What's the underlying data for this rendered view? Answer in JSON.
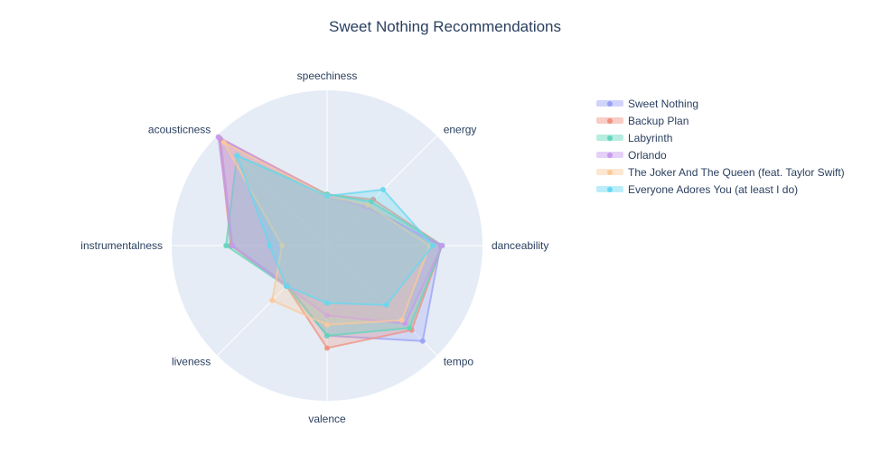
{
  "chart_data": {
    "type": "radar",
    "title": "Sweet Nothing Recommendations",
    "axes": [
      "speechiness",
      "energy",
      "danceability",
      "tempo",
      "valence",
      "liveness",
      "instrumentalness",
      "acousticness"
    ],
    "radial_range": [
      0,
      1
    ],
    "grid": true,
    "legend_position": "right",
    "series": [
      {
        "name": "Sweet Nothing",
        "color": "#9aa0f5",
        "values": [
          0.32,
          0.36,
          0.73,
          0.87,
          0.58,
          0.36,
          0.61,
          0.97
        ]
      },
      {
        "name": "Backup Plan",
        "color": "#f0907f",
        "values": [
          0.33,
          0.42,
          0.74,
          0.77,
          0.66,
          0.37,
          0.62,
          0.98
        ]
      },
      {
        "name": "Labyrinth",
        "color": "#5fd6ba",
        "values": [
          0.33,
          0.4,
          0.74,
          0.75,
          0.58,
          0.37,
          0.65,
          0.82
        ]
      },
      {
        "name": "Orlando",
        "color": "#c59af0",
        "values": [
          0.32,
          0.35,
          0.74,
          0.71,
          0.45,
          0.37,
          0.61,
          0.99
        ]
      },
      {
        "name": "The Joker And The Queen (feat. Taylor Swift)",
        "color": "#fbc99a",
        "values": [
          0.32,
          0.37,
          0.66,
          0.68,
          0.51,
          0.5,
          0.29,
          0.94
        ]
      },
      {
        "name": "Everyone Adores You (at least I do)",
        "color": "#66d8f0",
        "values": [
          0.32,
          0.51,
          0.68,
          0.54,
          0.37,
          0.37,
          0.37,
          0.82
        ]
      }
    ]
  }
}
